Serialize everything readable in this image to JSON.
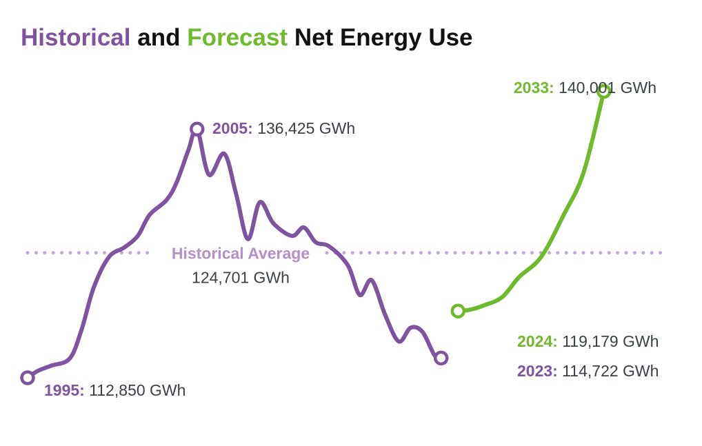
{
  "title": {
    "part1": "Historical",
    "part2": " and ",
    "part3": "Forecast",
    "part4": " Net Energy Use"
  },
  "colors": {
    "historical": "#7e54a0",
    "forecast": "#6fba2c",
    "average": "#c6a8d8",
    "average_text": "#b58fcc",
    "dark_text": "#3b3f46",
    "title_dark": "#111111"
  },
  "chart_data": {
    "type": "line",
    "title": "Historical and Forecast Net Energy Use",
    "xlabel": "",
    "ylabel": "",
    "unit": "GWh",
    "grid": false,
    "xlim": [
      1995,
      2033
    ],
    "ylim": [
      110500,
      142000
    ],
    "series": [
      {
        "name": "Historical",
        "color": "#7e54a0",
        "points": [
          [
            1995.0,
            112850
          ],
          [
            1995.6,
            113500
          ],
          [
            1996.4,
            114000
          ],
          [
            1997.5,
            114700
          ],
          [
            1998.2,
            117500
          ],
          [
            1998.9,
            121400
          ],
          [
            1999.8,
            124300
          ],
          [
            2000.7,
            125200
          ],
          [
            2001.5,
            126300
          ],
          [
            2002.2,
            128300
          ],
          [
            2003.2,
            129700
          ],
          [
            2003.8,
            131400
          ],
          [
            2004.5,
            134500
          ],
          [
            2005.0,
            136425
          ],
          [
            2005.7,
            132100
          ],
          [
            2006.6,
            134100
          ],
          [
            2007.3,
            130300
          ],
          [
            2008.0,
            126000
          ],
          [
            2008.7,
            129500
          ],
          [
            2009.5,
            127500
          ],
          [
            2010.6,
            126300
          ],
          [
            2011.3,
            127100
          ],
          [
            2012.0,
            125700
          ],
          [
            2012.8,
            125300
          ],
          [
            2013.9,
            123500
          ],
          [
            2014.6,
            120700
          ],
          [
            2015.3,
            122100
          ],
          [
            2016.1,
            118800
          ],
          [
            2016.9,
            116300
          ],
          [
            2017.6,
            117600
          ],
          [
            2018.3,
            117200
          ],
          [
            2019.0,
            115000
          ],
          [
            2019.4,
            114722
          ]
        ],
        "start_label": {
          "year": "1995:",
          "value": "112,850 GWh"
        },
        "peak_label": {
          "year": "2005:",
          "value": "136,425 GWh"
        },
        "end_label": {
          "year": "2023:",
          "value": "114,722 GWh"
        }
      },
      {
        "name": "Forecast",
        "color": "#6fba2c",
        "points": [
          [
            2020.4,
            119179
          ],
          [
            2021.1,
            119300
          ],
          [
            2021.9,
            119700
          ],
          [
            2023.0,
            120500
          ],
          [
            2024.0,
            122400
          ],
          [
            2025.3,
            124300
          ],
          [
            2026.6,
            128200
          ],
          [
            2027.8,
            132300
          ],
          [
            2029.0,
            140001
          ]
        ],
        "start_label": {
          "year": "2024:",
          "value": "119,179 GWh"
        },
        "end_label": {
          "year": "2033:",
          "value": "140,001 GWh"
        }
      }
    ],
    "reference_line": {
      "label": "Historical Average",
      "value_text": "124,701 GWh",
      "value": 124701,
      "style": "dotted"
    }
  }
}
